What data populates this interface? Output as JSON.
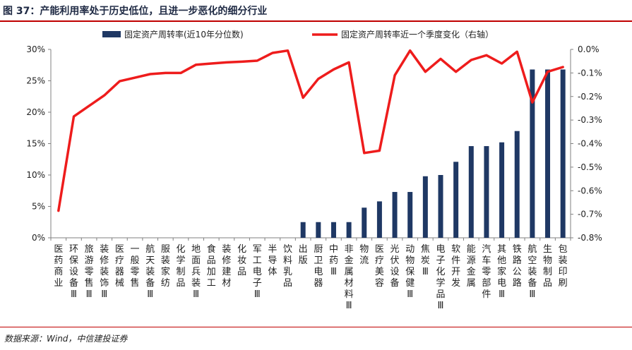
{
  "title": "图 37：产能利用率处于历史低位，且进一步恶化的细分行业",
  "source": "数据来源：Wind，中信建投证券",
  "colors": {
    "bar": "#1f3864",
    "line": "#ee1c1c",
    "rule": "#c00000"
  },
  "chart_data": {
    "type": "bar",
    "categories": [
      "医药商业",
      "环保设备Ⅲ",
      "旅游零售Ⅲ",
      "装修装饰Ⅲ",
      "医疗器械",
      "一般零售",
      "航天装备Ⅲ",
      "服装家纺",
      "化学制品",
      "地面兵装Ⅲ",
      "食品加工",
      "装修建材",
      "化妆品",
      "军工电子Ⅲ",
      "半导体",
      "饮料乳品",
      "出版",
      "厨卫电器",
      "中药Ⅲ",
      "非金属材料Ⅲ",
      "物流",
      "医疗美容",
      "光伏设备",
      "动物保健Ⅲ",
      "焦炭Ⅲ",
      "电子化学品Ⅲ",
      "软件开发",
      "能源金属",
      "汽车零部件",
      "其他家电Ⅲ",
      "铁路公路",
      "航空装备Ⅲ",
      "生物制品",
      "包装印刷"
    ],
    "series": [
      {
        "name": "固定资产周转率(近10年分位数)",
        "type": "bar",
        "axis": "left",
        "values": [
          0,
          0,
          0,
          0,
          0,
          0,
          0,
          0,
          0,
          0,
          0,
          0,
          0,
          0,
          0,
          0,
          2.5,
          2.5,
          2.5,
          2.5,
          4.8,
          5.8,
          7.3,
          7.3,
          9.8,
          10.0,
          12.1,
          14.6,
          14.6,
          15.2,
          17.0,
          26.8,
          26.8,
          26.8
        ]
      },
      {
        "name": "固定资产周转率近一个季度变化（右轴）",
        "type": "line",
        "axis": "right",
        "values": [
          -0.685,
          -0.285,
          -0.24,
          -0.195,
          -0.135,
          -0.12,
          -0.105,
          -0.1,
          -0.1,
          -0.065,
          -0.06,
          -0.055,
          -0.052,
          -0.048,
          -0.015,
          -0.005,
          -0.205,
          -0.125,
          -0.085,
          -0.055,
          -0.44,
          -0.43,
          -0.11,
          -0.005,
          -0.095,
          -0.04,
          -0.095,
          -0.045,
          -0.025,
          -0.06,
          -0.01,
          -0.225,
          -0.095,
          -0.075
        ]
      }
    ],
    "y_left": {
      "ylim": [
        0,
        30
      ],
      "ticks": [
        "0%",
        "5%",
        "10%",
        "15%",
        "20%",
        "25%",
        "30%"
      ]
    },
    "y_right": {
      "ylim": [
        -0.8,
        0
      ],
      "ticks": [
        "0.0%",
        "-0.1%",
        "-0.2%",
        "-0.3%",
        "-0.4%",
        "-0.5%",
        "-0.6%",
        "-0.7%",
        "-0.8%"
      ]
    },
    "legend_position": "top",
    "grid": false
  }
}
